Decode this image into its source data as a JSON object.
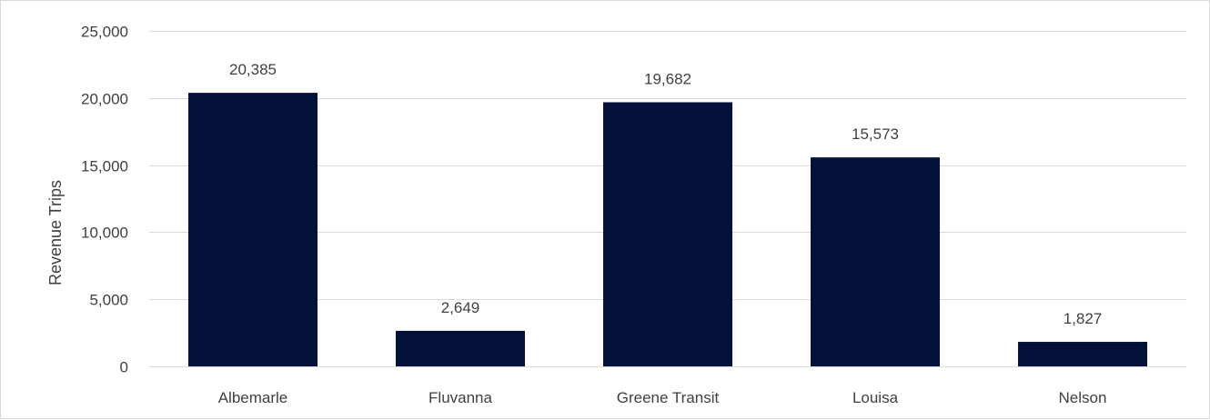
{
  "colors": {
    "bar": "#02103a",
    "grid": "#d9d9d9",
    "text": "#404040",
    "background": "#ffffff"
  },
  "chart_data": {
    "type": "bar",
    "title": "",
    "xlabel": "",
    "ylabel": "Revenue Trips",
    "categories": [
      "Albemarle",
      "Fluvanna",
      "Greene Transit",
      "Louisa",
      "Nelson"
    ],
    "values": [
      20385,
      2649,
      19682,
      15573,
      1827
    ],
    "data_labels": [
      "20,385",
      "2,649",
      "19,682",
      "15,573",
      "1,827"
    ],
    "ylim": [
      0,
      25000
    ],
    "yticks": [
      0,
      5000,
      10000,
      15000,
      20000,
      25000
    ],
    "ytick_labels": [
      "0",
      "5,000",
      "10,000",
      "15,000",
      "20,000",
      "25,000"
    ],
    "grid": true,
    "legend": "none"
  }
}
